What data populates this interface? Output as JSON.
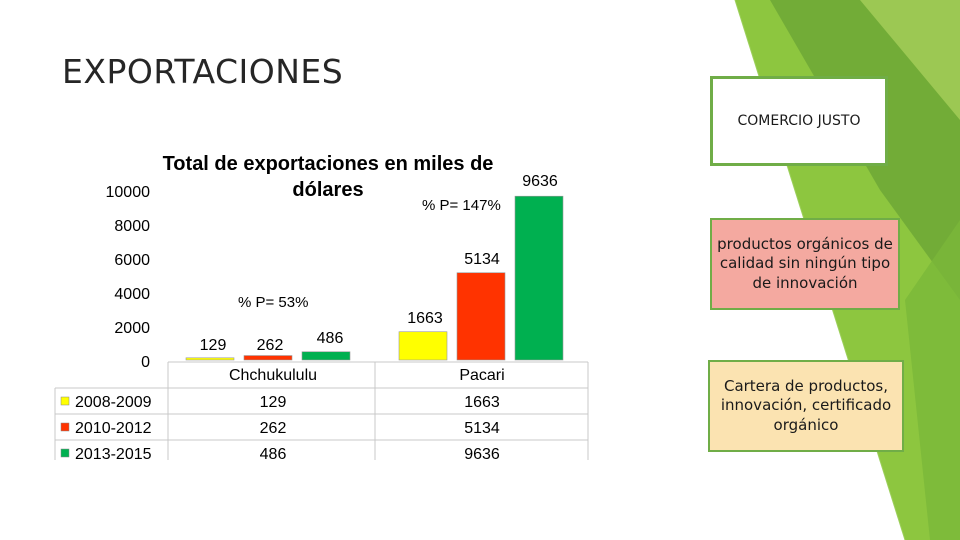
{
  "slide": {
    "title": "EXPORTACIONES",
    "boxes": {
      "comercio_justo": "COMERCIO JUSTO",
      "productos_organicos": "productos orgánicos de calidad sin ningún tipo de innovación",
      "cartera": "Cartera de productos, innovación, certificado orgánico"
    },
    "colors": {
      "accent_green": "#70ad47",
      "pink_box": "#f4a9a0",
      "cream_box": "#fbe3b1"
    }
  },
  "chart_data": {
    "type": "bar",
    "title": "Total de exportaciones en miles de dólares",
    "categories": [
      "Chchukululu",
      "Pacari"
    ],
    "series": [
      {
        "name": "2008-2009",
        "values": [
          129,
          1663
        ],
        "color": "#ffff00"
      },
      {
        "name": "2010-2012",
        "values": [
          262,
          5134
        ],
        "color": "#ff3300"
      },
      {
        "name": "2013-2015",
        "values": [
          486,
          9636
        ],
        "color": "#00b050"
      }
    ],
    "yticks": [
      0,
      2000,
      4000,
      6000,
      8000,
      10000
    ],
    "ylim": [
      0,
      10000
    ],
    "annotations": [
      "% P= 53%",
      "% P= 147%"
    ],
    "legend": "data-table-left",
    "grid": false
  }
}
